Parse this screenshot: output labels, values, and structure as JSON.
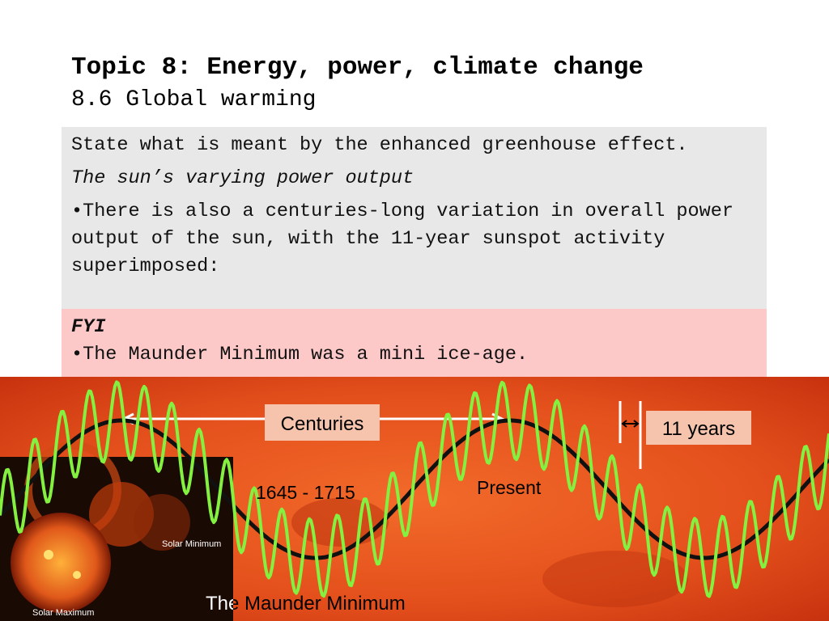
{
  "header": {
    "title": "Topic 8: Energy, power, climate change",
    "subtitle": "8.6 Global warming"
  },
  "content": {
    "objective": "State what is meant by the enhanced greenhouse effect.",
    "heading": "The sun’s varying power output",
    "bullet": "•There is also a centuries-long variation in overall power output of the sun, with the 11-year sunspot activity superimposed:"
  },
  "fyi": {
    "label": "FYI",
    "bullet": "•The Maunder Minimum was a mini ice-age."
  },
  "figure": {
    "centuries": "Centuries",
    "eleven_years": "11 years",
    "period": "1645 - 1715",
    "present": "Present",
    "caption": "The Maunder Minimum",
    "inset_min": "Solar Minimum",
    "inset_max": "Solar Maximum"
  }
}
